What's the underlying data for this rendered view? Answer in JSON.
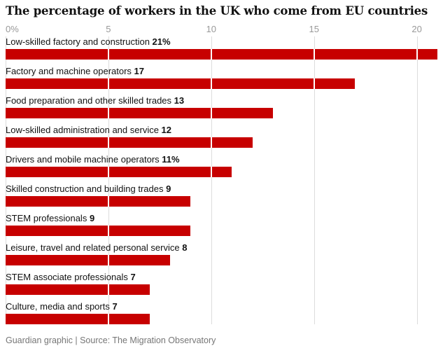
{
  "page": {
    "title": "The percentage of workers in the UK who come from EU countries",
    "footer": "Guardian graphic | Source: The Migration Observatory"
  },
  "colors": {
    "bar": "#c70000",
    "grid": "#dcdcdc",
    "tick_text": "#999999",
    "label_text": "#121212",
    "footer_text": "#767676"
  },
  "chart_data": {
    "type": "bar",
    "orientation": "horizontal",
    "title": "The percentage of workers in the UK who come from EU countries",
    "xlabel": "",
    "ylabel": "",
    "xlim": [
      0,
      21
    ],
    "grid": true,
    "legend": false,
    "x_ticks": [
      {
        "value": 0,
        "label": "0%"
      },
      {
        "value": 5,
        "label": "5"
      },
      {
        "value": 10,
        "label": "10"
      },
      {
        "value": 15,
        "label": "15"
      },
      {
        "value": 20,
        "label": "20"
      }
    ],
    "bars": [
      {
        "category": "Low-skilled factory and construction",
        "value": 21,
        "label": "21%"
      },
      {
        "category": "Factory and machine operators",
        "value": 17,
        "label": "17"
      },
      {
        "category": "Food preparation and other skilled trades",
        "value": 13,
        "label": "13"
      },
      {
        "category": "Low-skilled administration and service",
        "value": 12,
        "label": "12"
      },
      {
        "category": "Drivers and mobile machine operators",
        "value": 11,
        "label": "11%"
      },
      {
        "category": "Skilled construction and building trades",
        "value": 9,
        "label": "9"
      },
      {
        "category": "STEM professionals",
        "value": 9,
        "label": "9"
      },
      {
        "category": "Leisure, travel and related personal service",
        "value": 8,
        "label": "8"
      },
      {
        "category": "STEM associate professionals",
        "value": 7,
        "label": "7"
      },
      {
        "category": "Culture, media and sports",
        "value": 7,
        "label": "7"
      }
    ]
  }
}
